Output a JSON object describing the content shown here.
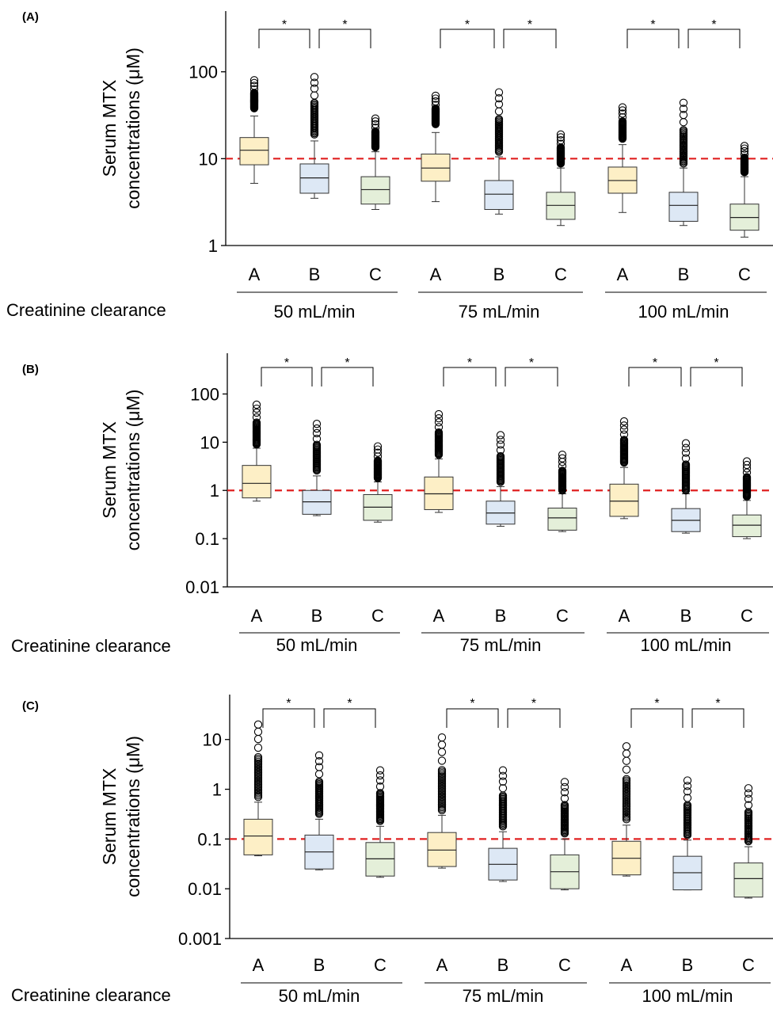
{
  "figure": {
    "ylabel_lines": [
      "Serum MTX",
      "concentrations (μM)"
    ],
    "xaxis_title": "Creatinine clearance",
    "significance_mark": "*",
    "reference_color": "#e02020",
    "box_colors": {
      "A": "#fdefc6",
      "B": "#dde8f5",
      "C": "#e4efd9"
    }
  },
  "chart_data": [
    {
      "type": "box",
      "panel_label": "(A)",
      "scale": "log",
      "ylim": [
        1,
        500
      ],
      "ytick_values": [
        1,
        10,
        100
      ],
      "ytick_labels": [
        "1",
        "10",
        "100"
      ],
      "reference_line": 10,
      "categories": [
        "A",
        "B",
        "C",
        "A",
        "B",
        "C",
        "A",
        "B",
        "C"
      ],
      "groups": [
        "50 mL/min",
        "75 mL/min",
        "100 mL/min"
      ],
      "boxes": [
        {
          "group": 0,
          "cat": "A",
          "whisker_low": 5.2,
          "q1": 8.5,
          "median": 12.5,
          "q3": 17.5,
          "whisker_high": 31,
          "outlier_low": 38,
          "outlier_high": 80
        },
        {
          "group": 0,
          "cat": "B",
          "whisker_low": 3.5,
          "q1": 4.0,
          "median": 6.0,
          "q3": 8.7,
          "whisker_high": 16,
          "outlier_low": 19,
          "outlier_high": 87
        },
        {
          "group": 0,
          "cat": "C",
          "whisker_low": 2.6,
          "q1": 3.0,
          "median": 4.4,
          "q3": 6.2,
          "whisker_high": 12,
          "outlier_low": 13.5,
          "outlier_high": 29
        },
        {
          "group": 1,
          "cat": "A",
          "whisker_low": 3.2,
          "q1": 5.5,
          "median": 7.8,
          "q3": 11.3,
          "whisker_high": 20,
          "outlier_low": 25,
          "outlier_high": 53
        },
        {
          "group": 1,
          "cat": "B",
          "whisker_low": 2.3,
          "q1": 2.6,
          "median": 3.9,
          "q3": 5.6,
          "whisker_high": 10.5,
          "outlier_low": 12,
          "outlier_high": 58
        },
        {
          "group": 1,
          "cat": "C",
          "whisker_low": 1.7,
          "q1": 2.0,
          "median": 2.9,
          "q3": 4.1,
          "whisker_high": 7.8,
          "outlier_low": 8.8,
          "outlier_high": 19
        },
        {
          "group": 2,
          "cat": "A",
          "whisker_low": 2.4,
          "q1": 4.0,
          "median": 5.6,
          "q3": 8.0,
          "whisker_high": 14.5,
          "outlier_low": 17,
          "outlier_high": 39
        },
        {
          "group": 2,
          "cat": "B",
          "whisker_low": 1.7,
          "q1": 1.9,
          "median": 2.9,
          "q3": 4.1,
          "whisker_high": 7.8,
          "outlier_low": 8.8,
          "outlier_high": 44
        },
        {
          "group": 2,
          "cat": "C",
          "whisker_low": 1.25,
          "q1": 1.5,
          "median": 2.1,
          "q3": 3.0,
          "whisker_high": 6.2,
          "outlier_low": 7.0,
          "outlier_high": 14
        }
      ],
      "significance": [
        {
          "from": 0,
          "to": 1
        },
        {
          "from": 1,
          "to": 2
        },
        {
          "from": 3,
          "to": 4
        },
        {
          "from": 4,
          "to": 5
        },
        {
          "from": 6,
          "to": 7
        },
        {
          "from": 7,
          "to": 8
        }
      ]
    },
    {
      "type": "box",
      "panel_label": "(B)",
      "scale": "log",
      "ylim": [
        0.01,
        700
      ],
      "ytick_values": [
        0.01,
        0.1,
        1,
        10,
        100
      ],
      "ytick_labels": [
        "0.01",
        "0.1",
        "1",
        "10",
        "100"
      ],
      "reference_line": 1,
      "categories": [
        "A",
        "B",
        "C",
        "A",
        "B",
        "C",
        "A",
        "B",
        "C"
      ],
      "groups": [
        "50 mL/min",
        "75 mL/min",
        "100 mL/min"
      ],
      "boxes": [
        {
          "group": 0,
          "cat": "A",
          "whisker_low": 0.6,
          "q1": 0.7,
          "median": 1.4,
          "q3": 3.3,
          "whisker_high": 7.5,
          "outlier_low": 9,
          "outlier_high": 60
        },
        {
          "group": 0,
          "cat": "B",
          "whisker_low": 0.3,
          "q1": 0.32,
          "median": 0.58,
          "q3": 1.0,
          "whisker_high": 2.0,
          "outlier_low": 2.6,
          "outlier_high": 24
        },
        {
          "group": 0,
          "cat": "C",
          "whisker_low": 0.22,
          "q1": 0.24,
          "median": 0.45,
          "q3": 0.82,
          "whisker_high": 1.5,
          "outlier_low": 1.8,
          "outlier_high": 8.2
        },
        {
          "group": 1,
          "cat": "A",
          "whisker_low": 0.35,
          "q1": 0.4,
          "median": 0.85,
          "q3": 1.9,
          "whisker_high": 4.5,
          "outlier_low": 5.5,
          "outlier_high": 38
        },
        {
          "group": 1,
          "cat": "B",
          "whisker_low": 0.18,
          "q1": 0.2,
          "median": 0.34,
          "q3": 0.6,
          "whisker_high": 1.2,
          "outlier_low": 1.5,
          "outlier_high": 14
        },
        {
          "group": 1,
          "cat": "C",
          "whisker_low": 0.14,
          "q1": 0.15,
          "median": 0.27,
          "q3": 0.43,
          "whisker_high": 0.85,
          "outlier_low": 1.0,
          "outlier_high": 5.5
        },
        {
          "group": 2,
          "cat": "A",
          "whisker_low": 0.26,
          "q1": 0.29,
          "median": 0.6,
          "q3": 1.35,
          "whisker_high": 3.0,
          "outlier_low": 3.8,
          "outlier_high": 27
        },
        {
          "group": 2,
          "cat": "B",
          "whisker_low": 0.13,
          "q1": 0.14,
          "median": 0.24,
          "q3": 0.42,
          "whisker_high": 0.85,
          "outlier_low": 1.0,
          "outlier_high": 9.5
        },
        {
          "group": 2,
          "cat": "C",
          "whisker_low": 0.1,
          "q1": 0.11,
          "median": 0.19,
          "q3": 0.31,
          "whisker_high": 0.62,
          "outlier_low": 0.75,
          "outlier_high": 4.0
        }
      ],
      "significance": [
        {
          "from": 0,
          "to": 1
        },
        {
          "from": 1,
          "to": 2
        },
        {
          "from": 3,
          "to": 4
        },
        {
          "from": 4,
          "to": 5
        },
        {
          "from": 6,
          "to": 7
        },
        {
          "from": 7,
          "to": 8
        }
      ]
    },
    {
      "type": "box",
      "panel_label": "(C)",
      "scale": "log",
      "ylim": [
        0.001,
        80
      ],
      "ytick_values": [
        0.001,
        0.01,
        0.1,
        1,
        10
      ],
      "ytick_labels": [
        "0.001",
        "0.01",
        "0.1",
        "1",
        "10"
      ],
      "reference_line": 0.1,
      "categories": [
        "A",
        "B",
        "C",
        "A",
        "B",
        "C",
        "A",
        "B",
        "C"
      ],
      "groups": [
        "50 mL/min",
        "75 mL/min",
        "100 mL/min"
      ],
      "boxes": [
        {
          "group": 0,
          "cat": "A",
          "whisker_low": 0.046,
          "q1": 0.048,
          "median": 0.115,
          "q3": 0.25,
          "whisker_high": 0.55,
          "outlier_low": 0.7,
          "outlier_high": 20
        },
        {
          "group": 0,
          "cat": "B",
          "whisker_low": 0.024,
          "q1": 0.025,
          "median": 0.055,
          "q3": 0.12,
          "whisker_high": 0.25,
          "outlier_low": 0.32,
          "outlier_high": 4.8
        },
        {
          "group": 0,
          "cat": "C",
          "whisker_low": 0.017,
          "q1": 0.018,
          "median": 0.04,
          "q3": 0.085,
          "whisker_high": 0.18,
          "outlier_low": 0.23,
          "outlier_high": 2.4
        },
        {
          "group": 1,
          "cat": "A",
          "whisker_low": 0.026,
          "q1": 0.028,
          "median": 0.06,
          "q3": 0.135,
          "whisker_high": 0.3,
          "outlier_low": 0.38,
          "outlier_high": 11
        },
        {
          "group": 1,
          "cat": "B",
          "whisker_low": 0.014,
          "q1": 0.015,
          "median": 0.031,
          "q3": 0.065,
          "whisker_high": 0.14,
          "outlier_low": 0.18,
          "outlier_high": 2.4
        },
        {
          "group": 1,
          "cat": "C",
          "whisker_low": 0.0095,
          "q1": 0.01,
          "median": 0.022,
          "q3": 0.048,
          "whisker_high": 0.1,
          "outlier_low": 0.13,
          "outlier_high": 1.4
        },
        {
          "group": 2,
          "cat": "A",
          "whisker_low": 0.018,
          "q1": 0.019,
          "median": 0.041,
          "q3": 0.09,
          "whisker_high": 0.19,
          "outlier_low": 0.25,
          "outlier_high": 7.3
        },
        {
          "group": 2,
          "cat": "B",
          "whisker_low": 0.0095,
          "q1": 0.0095,
          "median": 0.021,
          "q3": 0.045,
          "whisker_high": 0.095,
          "outlier_low": 0.12,
          "outlier_high": 1.5
        },
        {
          "group": 2,
          "cat": "C",
          "whisker_low": 0.0065,
          "q1": 0.0068,
          "median": 0.016,
          "q3": 0.033,
          "whisker_high": 0.07,
          "outlier_low": 0.09,
          "outlier_high": 1.05
        }
      ],
      "significance": [
        {
          "from": 0,
          "to": 1
        },
        {
          "from": 1,
          "to": 2
        },
        {
          "from": 3,
          "to": 4
        },
        {
          "from": 4,
          "to": 5
        },
        {
          "from": 6,
          "to": 7
        },
        {
          "from": 7,
          "to": 8
        }
      ]
    }
  ]
}
